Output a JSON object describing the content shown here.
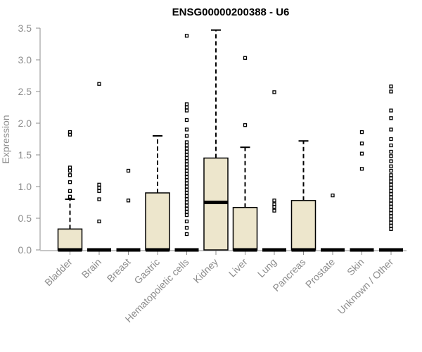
{
  "chart_data": {
    "type": "boxplot",
    "title": "ENSG00000200388 - U6",
    "xlabel": "",
    "ylabel": "Expression",
    "ylim": [
      0,
      3.5
    ],
    "yticks": [
      "0.0",
      "0.5",
      "1.0",
      "1.5",
      "2.0",
      "2.5",
      "3.0",
      "3.5"
    ],
    "grid": false,
    "box_color": "#ede6cc",
    "outline_color": "#000000",
    "axis_color": "#8c8c8c",
    "categories": [
      "Bladder",
      "Brain",
      "Breast",
      "Gastric",
      "Hematopoietic cells",
      "Kidney",
      "Liver",
      "Lung",
      "Pancreas",
      "Prostate",
      "Skin",
      "Unknown / Other"
    ],
    "boxes": [
      {
        "category": "Bladder",
        "q1": 0.0,
        "median": 0.0,
        "q3": 0.33,
        "whisker_low": 0.0,
        "whisker_high": 0.8,
        "outliers": [
          0.84,
          0.93,
          1.07,
          1.18,
          1.25,
          1.3,
          1.82,
          1.86
        ]
      },
      {
        "category": "Brain",
        "q1": 0.0,
        "median": 0.0,
        "q3": 0.0,
        "whisker_low": 0.0,
        "whisker_high": 0.0,
        "outliers": [
          0.45,
          0.8,
          0.93,
          0.98,
          1.03,
          2.62
        ]
      },
      {
        "category": "Breast",
        "q1": 0.0,
        "median": 0.0,
        "q3": 0.0,
        "whisker_low": 0.0,
        "whisker_high": 0.0,
        "outliers": [
          0.78,
          1.25
        ]
      },
      {
        "category": "Gastric",
        "q1": 0.0,
        "median": 0.0,
        "q3": 0.9,
        "whisker_low": 0.0,
        "whisker_high": 1.8,
        "outliers": []
      },
      {
        "category": "Hematopoietic cells",
        "q1": 0.0,
        "median": 0.0,
        "q3": 0.0,
        "whisker_low": 0.0,
        "whisker_high": 0.0,
        "outliers": [
          0.25,
          0.35,
          0.45,
          0.55,
          0.6,
          0.65,
          0.7,
          0.75,
          0.8,
          0.85,
          0.9,
          0.95,
          1.0,
          1.05,
          1.1,
          1.15,
          1.2,
          1.25,
          1.3,
          1.35,
          1.4,
          1.45,
          1.5,
          1.55,
          1.6,
          1.65,
          1.7,
          1.8,
          1.9,
          2.05,
          2.2,
          2.25,
          2.3,
          3.38
        ]
      },
      {
        "category": "Kidney",
        "q1": 0.0,
        "median": 0.75,
        "q3": 1.45,
        "whisker_low": 0.0,
        "whisker_high": 3.47,
        "outliers": []
      },
      {
        "category": "Liver",
        "q1": 0.0,
        "median": 0.0,
        "q3": 0.67,
        "whisker_low": 0.0,
        "whisker_high": 1.62,
        "outliers": [
          1.97,
          3.03
        ]
      },
      {
        "category": "Lung",
        "q1": 0.0,
        "median": 0.0,
        "q3": 0.0,
        "whisker_low": 0.0,
        "whisker_high": 0.0,
        "outliers": [
          0.62,
          0.68,
          0.72,
          0.78,
          2.49
        ]
      },
      {
        "category": "Pancreas",
        "q1": 0.0,
        "median": 0.0,
        "q3": 0.78,
        "whisker_low": 0.0,
        "whisker_high": 1.72,
        "outliers": []
      },
      {
        "category": "Prostate",
        "q1": 0.0,
        "median": 0.0,
        "q3": 0.0,
        "whisker_low": 0.0,
        "whisker_high": 0.0,
        "outliers": [
          0.86
        ]
      },
      {
        "category": "Skin",
        "q1": 0.0,
        "median": 0.0,
        "q3": 0.0,
        "whisker_low": 0.0,
        "whisker_high": 0.0,
        "outliers": [
          1.28,
          1.52,
          1.68,
          1.86
        ]
      },
      {
        "category": "Unknown / Other",
        "q1": 0.0,
        "median": 0.0,
        "q3": 0.0,
        "whisker_low": 0.0,
        "whisker_high": 0.0,
        "outliers": [
          0.33,
          0.38,
          0.43,
          0.48,
          0.53,
          0.58,
          0.63,
          0.68,
          0.73,
          0.78,
          0.83,
          0.88,
          0.93,
          0.98,
          1.03,
          1.08,
          1.13,
          1.18,
          1.25,
          1.32,
          1.4,
          1.48,
          1.55,
          1.65,
          1.75,
          1.9,
          2.08,
          2.2,
          2.5,
          2.58
        ]
      }
    ]
  }
}
